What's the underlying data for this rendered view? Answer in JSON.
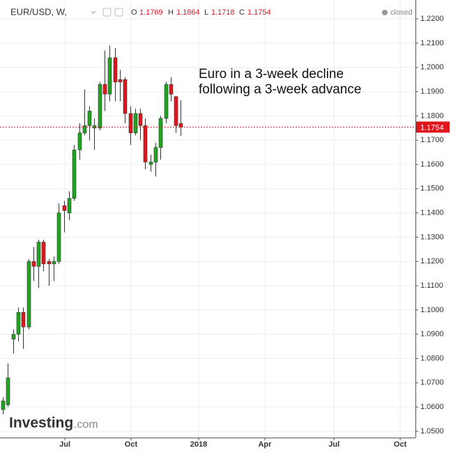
{
  "chart_data": {
    "type": "candlestick",
    "title": "EUR/USD, W,",
    "ohlc_labels": [
      "O",
      "H",
      "L",
      "C"
    ],
    "status": "closed",
    "annotation": [
      "Euro in a 3-week decline",
      "following a 3-week advance"
    ],
    "logo": [
      "Investing",
      ".com"
    ],
    "up_color": "#1fa51f",
    "down_color": "#e0161c",
    "grid": true,
    "categories": [
      null,
      null,
      null,
      null,
      null,
      null,
      null,
      null,
      null,
      null,
      null,
      null,
      null,
      null,
      null,
      null,
      null,
      null,
      null,
      null,
      null,
      null,
      null,
      null,
      null,
      null,
      null,
      null,
      null,
      null,
      null,
      null,
      null,
      null,
      null,
      null
    ],
    "open": [
      1.059,
      1.061,
      1.088,
      1.09,
      1.099,
      1.093,
      1.12,
      1.118,
      1.128,
      1.12,
      1.119,
      1.12,
      1.143,
      1.14,
      1.146,
      1.166,
      1.173,
      1.176,
      1.175,
      1.175,
      1.193,
      1.189,
      1.204,
      1.195,
      1.195,
      1.181,
      1.173,
      1.181,
      1.176,
      1.16,
      1.161,
      1.167,
      1.179,
      1.193,
      1.188,
      1.1769
    ],
    "high": [
      1.064,
      1.078,
      1.092,
      1.101,
      1.101,
      1.121,
      1.126,
      1.129,
      1.129,
      1.121,
      1.122,
      1.144,
      1.145,
      1.149,
      1.168,
      1.177,
      1.191,
      1.184,
      1.179,
      1.194,
      1.207,
      1.209,
      1.208,
      1.199,
      1.196,
      1.184,
      1.183,
      1.183,
      1.179,
      1.164,
      1.169,
      1.18,
      1.194,
      1.196,
      1.188,
      1.1864
    ],
    "low": [
      1.057,
      1.06,
      1.082,
      1.087,
      1.084,
      1.092,
      1.112,
      1.109,
      1.116,
      1.11,
      1.112,
      1.119,
      1.132,
      1.137,
      1.145,
      1.162,
      1.172,
      1.17,
      1.166,
      1.174,
      1.182,
      1.186,
      1.186,
      1.186,
      1.177,
      1.168,
      1.172,
      1.17,
      1.158,
      1.157,
      1.155,
      1.162,
      1.177,
      1.186,
      1.173,
      1.1718
    ],
    "close": [
      1.0625,
      1.072,
      1.09,
      1.099,
      1.093,
      1.12,
      1.118,
      1.128,
      1.119,
      1.119,
      1.12,
      1.14,
      1.141,
      1.146,
      1.166,
      1.173,
      1.176,
      1.182,
      1.176,
      1.193,
      1.189,
      1.204,
      1.194,
      1.194,
      1.181,
      1.173,
      1.181,
      1.176,
      1.161,
      1.161,
      1.167,
      1.179,
      1.193,
      1.189,
      1.176,
      1.1754
    ],
    "xlim": [
      -0.55,
      81.1
    ],
    "xticks": [
      {
        "value": 12.2,
        "label": "Jul"
      },
      {
        "value": 25.2,
        "label": "Oct"
      },
      {
        "value": 38.5,
        "label": "2018"
      },
      {
        "value": 51.5,
        "label": "Apr"
      },
      {
        "value": 65.1,
        "label": "Jul"
      },
      {
        "value": 78.1,
        "label": "Oct"
      }
    ],
    "ylim": [
      1.0474,
      1.2278
    ],
    "yticks": [
      {
        "value": 1.05,
        "label": "1.0500"
      },
      {
        "value": 1.06,
        "label": "1.0600"
      },
      {
        "value": 1.07,
        "label": "1.0700"
      },
      {
        "value": 1.08,
        "label": "1.0800"
      },
      {
        "value": 1.09,
        "label": "1.0900"
      },
      {
        "value": 1.1,
        "label": "1.1000"
      },
      {
        "value": 1.11,
        "label": "1.1100"
      },
      {
        "value": 1.12,
        "label": "1.1200"
      },
      {
        "value": 1.13,
        "label": "1.1300"
      },
      {
        "value": 1.14,
        "label": "1.1400"
      },
      {
        "value": 1.15,
        "label": "1.1500"
      },
      {
        "value": 1.16,
        "label": "1.1600"
      },
      {
        "value": 1.17,
        "label": "1.1700"
      },
      {
        "value": 1.18,
        "label": "1.1800"
      },
      {
        "value": 1.19,
        "label": "1.1900"
      },
      {
        "value": 1.2,
        "label": "1.2000"
      },
      {
        "value": 1.21,
        "label": "1.2100"
      },
      {
        "value": 1.22,
        "label": "1.2200"
      }
    ]
  }
}
